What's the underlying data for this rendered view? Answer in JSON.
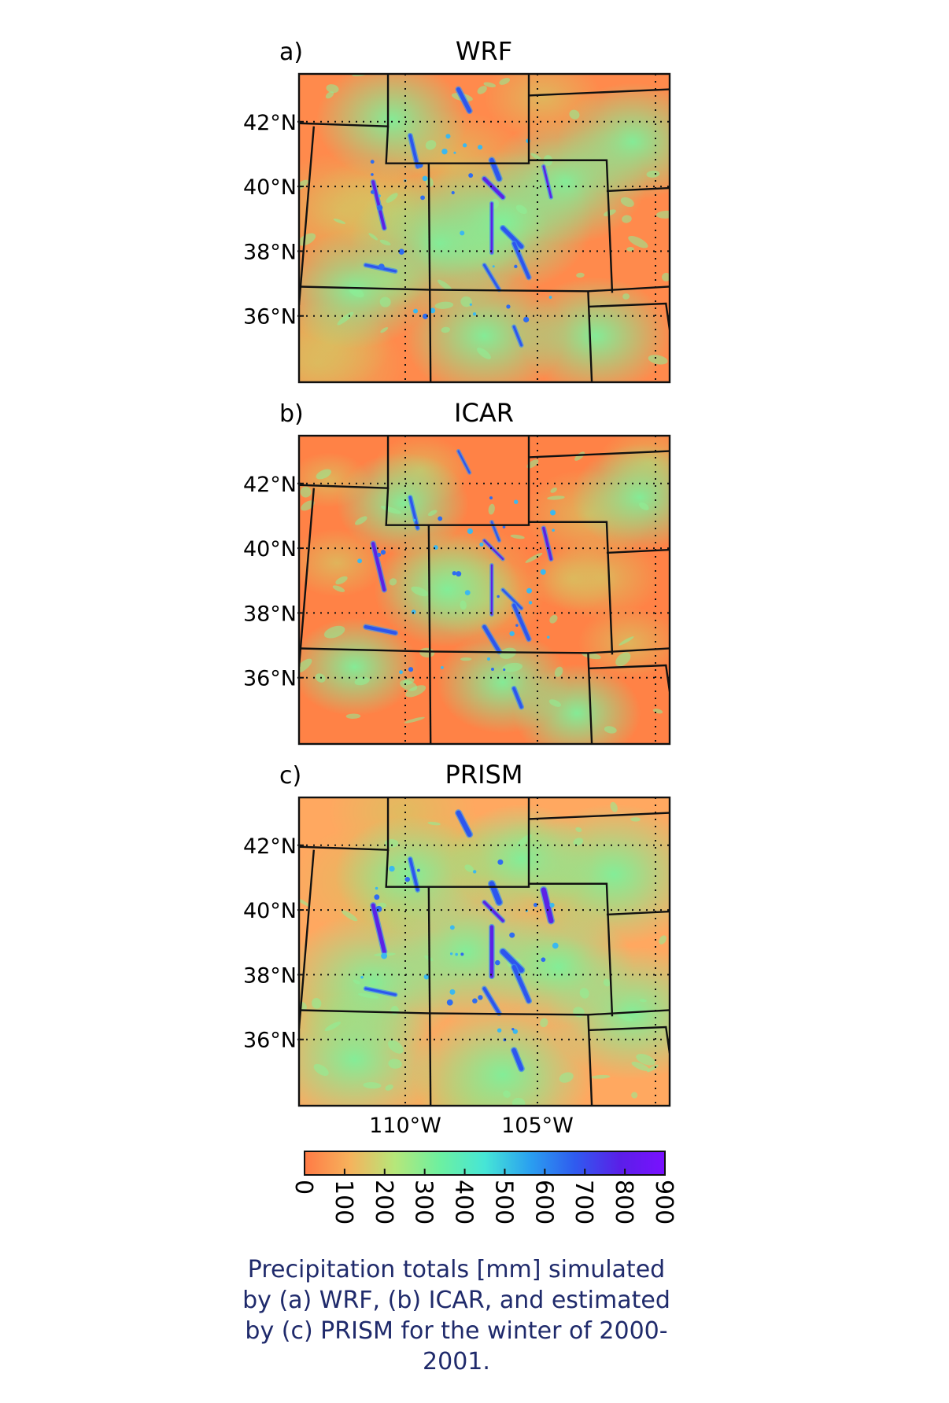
{
  "panels": [
    {
      "id": "a",
      "letter": "a)",
      "title": "WRF"
    },
    {
      "id": "b",
      "letter": "b)",
      "title": "ICAR"
    },
    {
      "id": "c",
      "letter": "c)",
      "title": "PRISM"
    }
  ],
  "lat_labels": [
    "42°N",
    "40°N",
    "38°N",
    "36°N"
  ],
  "lon_labels": [
    "110°W",
    "105°W"
  ],
  "colorbar": {
    "ticks": [
      "0",
      "100",
      "200",
      "300",
      "400",
      "500",
      "600",
      "700",
      "800",
      "900"
    ],
    "min": 0,
    "max": 900,
    "colors": [
      "#ff7a45",
      "#f6b25c",
      "#b6e77a",
      "#6df0a0",
      "#46e6d6",
      "#2aa0f0",
      "#2f5bef",
      "#5a1fe8",
      "#7a10ff"
    ]
  },
  "caption": "Precipitation totals [mm] simulated by (a) WRF, (b) ICAR, and estimated by (c) PRISM for the winter of 2000-2001."
}
